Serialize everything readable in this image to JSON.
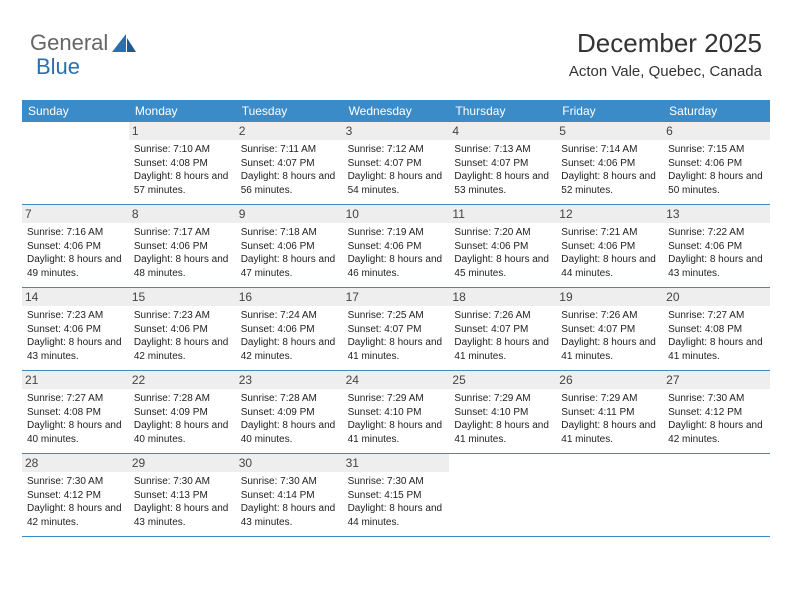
{
  "logo": {
    "text1": "General",
    "text2": "Blue"
  },
  "header": {
    "title": "December 2025",
    "location": "Acton Vale, Quebec, Canada"
  },
  "colors": {
    "header_bg": "#3b8bc9",
    "header_text": "#ffffff",
    "daynum_bg": "#eeeeee",
    "border": "#3b8bc9",
    "body_text": "#222222",
    "title_text": "#333333",
    "logo_gray": "#666666",
    "logo_blue": "#2a6fb0"
  },
  "day_names": [
    "Sunday",
    "Monday",
    "Tuesday",
    "Wednesday",
    "Thursday",
    "Friday",
    "Saturday"
  ],
  "weeks": [
    [
      {
        "day": "",
        "sunrise": "",
        "sunset": "",
        "daylight": ""
      },
      {
        "day": "1",
        "sunrise": "Sunrise: 7:10 AM",
        "sunset": "Sunset: 4:08 PM",
        "daylight": "Daylight: 8 hours and 57 minutes."
      },
      {
        "day": "2",
        "sunrise": "Sunrise: 7:11 AM",
        "sunset": "Sunset: 4:07 PM",
        "daylight": "Daylight: 8 hours and 56 minutes."
      },
      {
        "day": "3",
        "sunrise": "Sunrise: 7:12 AM",
        "sunset": "Sunset: 4:07 PM",
        "daylight": "Daylight: 8 hours and 54 minutes."
      },
      {
        "day": "4",
        "sunrise": "Sunrise: 7:13 AM",
        "sunset": "Sunset: 4:07 PM",
        "daylight": "Daylight: 8 hours and 53 minutes."
      },
      {
        "day": "5",
        "sunrise": "Sunrise: 7:14 AM",
        "sunset": "Sunset: 4:06 PM",
        "daylight": "Daylight: 8 hours and 52 minutes."
      },
      {
        "day": "6",
        "sunrise": "Sunrise: 7:15 AM",
        "sunset": "Sunset: 4:06 PM",
        "daylight": "Daylight: 8 hours and 50 minutes."
      }
    ],
    [
      {
        "day": "7",
        "sunrise": "Sunrise: 7:16 AM",
        "sunset": "Sunset: 4:06 PM",
        "daylight": "Daylight: 8 hours and 49 minutes."
      },
      {
        "day": "8",
        "sunrise": "Sunrise: 7:17 AM",
        "sunset": "Sunset: 4:06 PM",
        "daylight": "Daylight: 8 hours and 48 minutes."
      },
      {
        "day": "9",
        "sunrise": "Sunrise: 7:18 AM",
        "sunset": "Sunset: 4:06 PM",
        "daylight": "Daylight: 8 hours and 47 minutes."
      },
      {
        "day": "10",
        "sunrise": "Sunrise: 7:19 AM",
        "sunset": "Sunset: 4:06 PM",
        "daylight": "Daylight: 8 hours and 46 minutes."
      },
      {
        "day": "11",
        "sunrise": "Sunrise: 7:20 AM",
        "sunset": "Sunset: 4:06 PM",
        "daylight": "Daylight: 8 hours and 45 minutes."
      },
      {
        "day": "12",
        "sunrise": "Sunrise: 7:21 AM",
        "sunset": "Sunset: 4:06 PM",
        "daylight": "Daylight: 8 hours and 44 minutes."
      },
      {
        "day": "13",
        "sunrise": "Sunrise: 7:22 AM",
        "sunset": "Sunset: 4:06 PM",
        "daylight": "Daylight: 8 hours and 43 minutes."
      }
    ],
    [
      {
        "day": "14",
        "sunrise": "Sunrise: 7:23 AM",
        "sunset": "Sunset: 4:06 PM",
        "daylight": "Daylight: 8 hours and 43 minutes."
      },
      {
        "day": "15",
        "sunrise": "Sunrise: 7:23 AM",
        "sunset": "Sunset: 4:06 PM",
        "daylight": "Daylight: 8 hours and 42 minutes."
      },
      {
        "day": "16",
        "sunrise": "Sunrise: 7:24 AM",
        "sunset": "Sunset: 4:06 PM",
        "daylight": "Daylight: 8 hours and 42 minutes."
      },
      {
        "day": "17",
        "sunrise": "Sunrise: 7:25 AM",
        "sunset": "Sunset: 4:07 PM",
        "daylight": "Daylight: 8 hours and 41 minutes."
      },
      {
        "day": "18",
        "sunrise": "Sunrise: 7:26 AM",
        "sunset": "Sunset: 4:07 PM",
        "daylight": "Daylight: 8 hours and 41 minutes."
      },
      {
        "day": "19",
        "sunrise": "Sunrise: 7:26 AM",
        "sunset": "Sunset: 4:07 PM",
        "daylight": "Daylight: 8 hours and 41 minutes."
      },
      {
        "day": "20",
        "sunrise": "Sunrise: 7:27 AM",
        "sunset": "Sunset: 4:08 PM",
        "daylight": "Daylight: 8 hours and 41 minutes."
      }
    ],
    [
      {
        "day": "21",
        "sunrise": "Sunrise: 7:27 AM",
        "sunset": "Sunset: 4:08 PM",
        "daylight": "Daylight: 8 hours and 40 minutes."
      },
      {
        "day": "22",
        "sunrise": "Sunrise: 7:28 AM",
        "sunset": "Sunset: 4:09 PM",
        "daylight": "Daylight: 8 hours and 40 minutes."
      },
      {
        "day": "23",
        "sunrise": "Sunrise: 7:28 AM",
        "sunset": "Sunset: 4:09 PM",
        "daylight": "Daylight: 8 hours and 40 minutes."
      },
      {
        "day": "24",
        "sunrise": "Sunrise: 7:29 AM",
        "sunset": "Sunset: 4:10 PM",
        "daylight": "Daylight: 8 hours and 41 minutes."
      },
      {
        "day": "25",
        "sunrise": "Sunrise: 7:29 AM",
        "sunset": "Sunset: 4:10 PM",
        "daylight": "Daylight: 8 hours and 41 minutes."
      },
      {
        "day": "26",
        "sunrise": "Sunrise: 7:29 AM",
        "sunset": "Sunset: 4:11 PM",
        "daylight": "Daylight: 8 hours and 41 minutes."
      },
      {
        "day": "27",
        "sunrise": "Sunrise: 7:30 AM",
        "sunset": "Sunset: 4:12 PM",
        "daylight": "Daylight: 8 hours and 42 minutes."
      }
    ],
    [
      {
        "day": "28",
        "sunrise": "Sunrise: 7:30 AM",
        "sunset": "Sunset: 4:12 PM",
        "daylight": "Daylight: 8 hours and 42 minutes."
      },
      {
        "day": "29",
        "sunrise": "Sunrise: 7:30 AM",
        "sunset": "Sunset: 4:13 PM",
        "daylight": "Daylight: 8 hours and 43 minutes."
      },
      {
        "day": "30",
        "sunrise": "Sunrise: 7:30 AM",
        "sunset": "Sunset: 4:14 PM",
        "daylight": "Daylight: 8 hours and 43 minutes."
      },
      {
        "day": "31",
        "sunrise": "Sunrise: 7:30 AM",
        "sunset": "Sunset: 4:15 PM",
        "daylight": "Daylight: 8 hours and 44 minutes."
      },
      {
        "day": "",
        "sunrise": "",
        "sunset": "",
        "daylight": ""
      },
      {
        "day": "",
        "sunrise": "",
        "sunset": "",
        "daylight": ""
      },
      {
        "day": "",
        "sunrise": "",
        "sunset": "",
        "daylight": ""
      }
    ]
  ]
}
